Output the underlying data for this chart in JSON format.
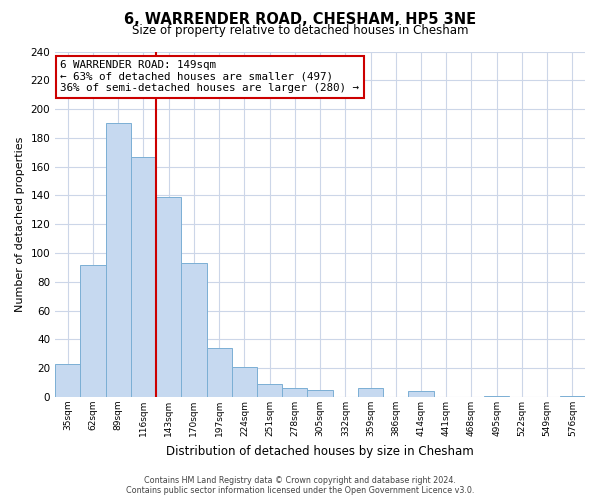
{
  "title": "6, WARRENDER ROAD, CHESHAM, HP5 3NE",
  "subtitle": "Size of property relative to detached houses in Chesham",
  "xlabel": "Distribution of detached houses by size in Chesham",
  "ylabel": "Number of detached properties",
  "bar_labels": [
    "35sqm",
    "62sqm",
    "89sqm",
    "116sqm",
    "143sqm",
    "170sqm",
    "197sqm",
    "224sqm",
    "251sqm",
    "278sqm",
    "305sqm",
    "332sqm",
    "359sqm",
    "386sqm",
    "414sqm",
    "441sqm",
    "468sqm",
    "495sqm",
    "522sqm",
    "549sqm",
    "576sqm"
  ],
  "bar_values": [
    23,
    92,
    190,
    167,
    139,
    93,
    34,
    21,
    9,
    6,
    5,
    0,
    6,
    0,
    4,
    0,
    0,
    1,
    0,
    0,
    1
  ],
  "bar_color": "#c6d9f0",
  "bar_edge_color": "#7bafd4",
  "vline_x_idx": 3.5,
  "vline_color": "#cc0000",
  "annotation_title": "6 WARRENDER ROAD: 149sqm",
  "annotation_line1": "← 63% of detached houses are smaller (497)",
  "annotation_line2": "36% of semi-detached houses are larger (280) →",
  "annotation_box_edge": "#cc0000",
  "ylim": [
    0,
    240
  ],
  "yticks": [
    0,
    20,
    40,
    60,
    80,
    100,
    120,
    140,
    160,
    180,
    200,
    220,
    240
  ],
  "footer_line1": "Contains HM Land Registry data © Crown copyright and database right 2024.",
  "footer_line2": "Contains public sector information licensed under the Open Government Licence v3.0.",
  "background_color": "#ffffff",
  "grid_color": "#ccd6e8"
}
